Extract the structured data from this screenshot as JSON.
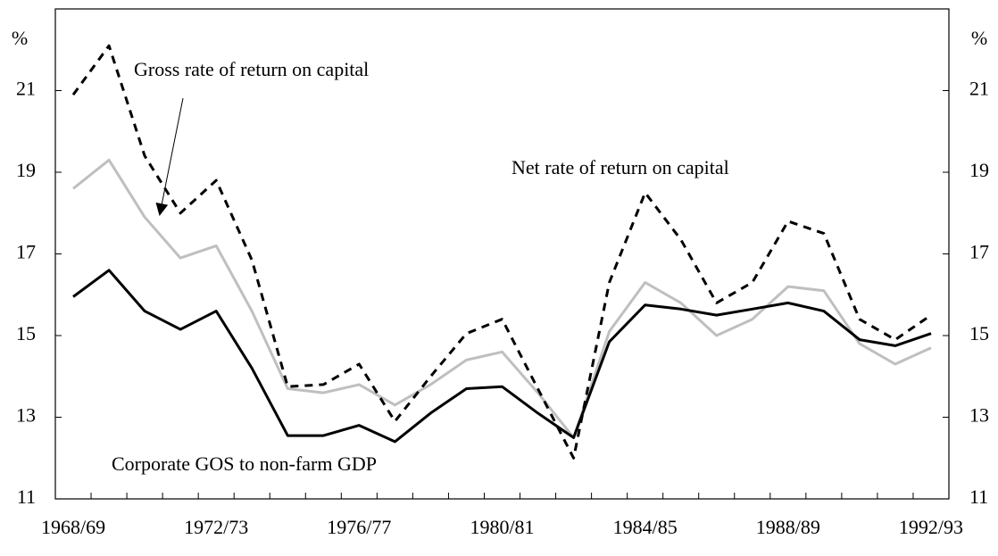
{
  "chart_data": {
    "type": "line",
    "y_label": "%",
    "categories": [
      "1968/69",
      null,
      null,
      null,
      "1972/73",
      null,
      null,
      null,
      "1976/77",
      null,
      null,
      null,
      "1980/81",
      null,
      null,
      null,
      "1984/85",
      null,
      null,
      null,
      "1988/89",
      null,
      null,
      null,
      "1992/93"
    ],
    "ylim": [
      11,
      23
    ],
    "yticks": [
      11,
      13,
      15,
      17,
      19,
      21
    ],
    "series": [
      {
        "name": "Gross rate of return on capital",
        "color": "#000000",
        "dash": true,
        "values": [
          20.9,
          22.1,
          19.4,
          18.0,
          18.8,
          16.85,
          13.75,
          13.8,
          14.3,
          12.9,
          14.0,
          15.05,
          15.4,
          13.7,
          12.0,
          16.3,
          18.5,
          17.35,
          15.8,
          16.3,
          17.8,
          17.5,
          15.4,
          14.9,
          15.5
        ]
      },
      {
        "name": "Net rate of return on capital",
        "color": "#bfbfbf",
        "dash": false,
        "values": [
          18.6,
          19.3,
          17.9,
          16.9,
          17.2,
          15.6,
          13.7,
          13.6,
          13.8,
          13.3,
          13.8,
          14.4,
          14.6,
          13.6,
          12.5,
          15.1,
          16.3,
          15.8,
          15.0,
          15.4,
          16.2,
          16.1,
          14.8,
          14.3,
          14.7
        ]
      },
      {
        "name": "Corporate GOS to non-farm GDP",
        "color": "#000000",
        "dash": false,
        "values": [
          15.95,
          16.6,
          15.6,
          15.15,
          15.6,
          14.2,
          12.55,
          12.55,
          12.8,
          12.4,
          13.1,
          13.7,
          13.75,
          13.1,
          12.5,
          14.85,
          15.75,
          15.65,
          15.5,
          15.65,
          15.8,
          15.6,
          14.9,
          14.75,
          15.05
        ]
      }
    ]
  }
}
